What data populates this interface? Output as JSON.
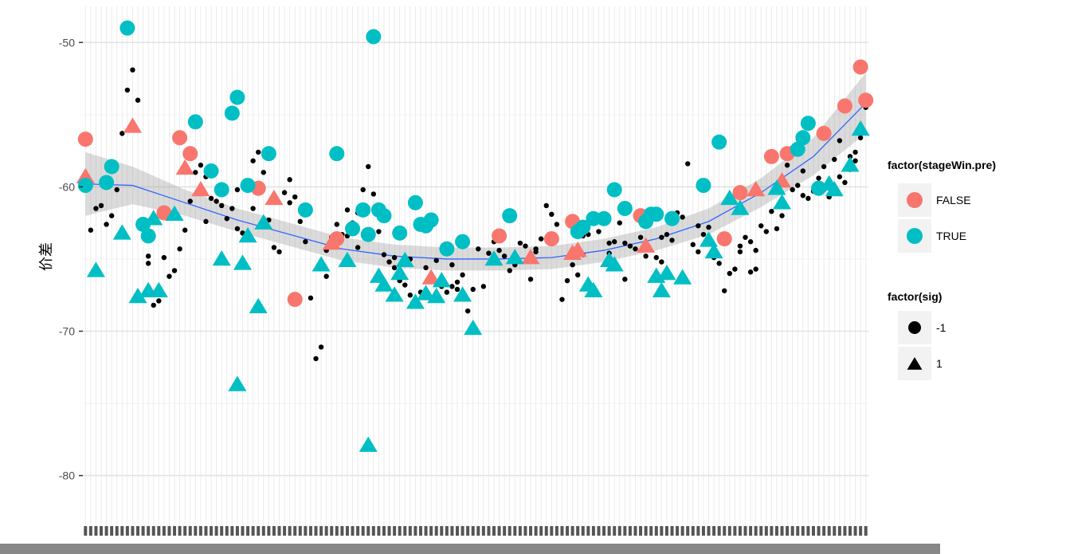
{
  "chart_data": {
    "type": "scatter",
    "ylabel": "价差",
    "xlabel": "",
    "ylim": [
      -83.5,
      -47.5
    ],
    "xlim": [
      0.5,
      150.5
    ],
    "x_categories": 150,
    "y_ticks": [
      -50,
      -60,
      -70,
      -80
    ],
    "y_tick_labels": [
      "-50",
      "-60",
      "-70",
      "-80"
    ],
    "grid": true,
    "legend_position": "right",
    "background_points": {
      "shape": "circle",
      "color": "#000000",
      "points": [
        [
          2,
          -63
        ],
        [
          3,
          -61.5
        ],
        [
          4,
          -61.3
        ],
        [
          5,
          -62.6
        ],
        [
          6,
          -62
        ],
        [
          7,
          -60.2
        ],
        [
          8,
          -56.3
        ],
        [
          9,
          -53.3
        ],
        [
          10,
          -51.9
        ],
        [
          11,
          -54
        ],
        [
          12,
          -62.3
        ],
        [
          13,
          -65.3
        ],
        [
          14,
          -68.2
        ],
        [
          15,
          -67.9
        ],
        [
          16,
          -64.9
        ],
        [
          17,
          -66.2
        ],
        [
          18,
          -65.8
        ],
        [
          19,
          -64.3
        ],
        [
          20,
          -63
        ],
        [
          21,
          -61
        ],
        [
          22,
          -59
        ],
        [
          23,
          -58.5
        ],
        [
          24,
          -59.3
        ],
        [
          25,
          -60.8
        ],
        [
          26,
          -61
        ],
        [
          27,
          -61.3
        ],
        [
          28,
          -62.2
        ],
        [
          29,
          -61.5
        ],
        [
          30,
          -62.9
        ],
        [
          31,
          -63.2
        ],
        [
          32,
          -63.3
        ],
        [
          33,
          -58.2
        ],
        [
          34,
          -57.6
        ],
        [
          35,
          -59
        ],
        [
          36,
          -62.3
        ],
        [
          37,
          -64.2
        ],
        [
          38,
          -64.5
        ],
        [
          39,
          -60.4
        ],
        [
          40,
          -59.5
        ],
        [
          41,
          -60.7
        ],
        [
          42,
          -62.4
        ],
        [
          43,
          -63.8
        ],
        [
          44,
          -67.7
        ],
        [
          45,
          -71.9
        ],
        [
          46,
          -71.1
        ],
        [
          47,
          -64.4
        ],
        [
          48,
          -63.5
        ],
        [
          49,
          -62.6
        ],
        [
          50,
          -63.3
        ],
        [
          51,
          -61.6
        ],
        [
          52,
          -62.5
        ],
        [
          53,
          -64.2
        ],
        [
          54,
          -60.2
        ],
        [
          55,
          -58.6
        ],
        [
          56,
          -60.5
        ],
        [
          57,
          -61.9
        ],
        [
          58,
          -64.7
        ],
        [
          59,
          -65.2
        ],
        [
          60,
          -65.6
        ],
        [
          61,
          -66.5
        ],
        [
          62,
          -66.8
        ],
        [
          63,
          -67.5
        ],
        [
          64,
          -68.2
        ],
        [
          65,
          -67.3
        ],
        [
          66,
          -65.6
        ],
        [
          67,
          -66.3
        ],
        [
          68,
          -65.1
        ],
        [
          69,
          -66.9
        ],
        [
          70,
          -67.3
        ],
        [
          71,
          -66.9
        ],
        [
          72,
          -66.6
        ],
        [
          73,
          -66.1
        ],
        [
          74,
          -68.6
        ],
        [
          75,
          -67.1
        ],
        [
          76,
          -64.3
        ],
        [
          77,
          -66.9
        ],
        [
          78,
          -64.6
        ],
        [
          79,
          -65.1
        ],
        [
          80,
          -64.4
        ],
        [
          81,
          -64.8
        ],
        [
          82,
          -65.8
        ],
        [
          83,
          -65.4
        ],
        [
          84,
          -63.9
        ],
        [
          85,
          -64.1
        ],
        [
          86,
          -66.4
        ],
        [
          87,
          -64.3
        ],
        [
          88,
          -63.6
        ],
        [
          89,
          -61.3
        ],
        [
          90,
          -61.9
        ],
        [
          91,
          -62.6
        ],
        [
          92,
          -67.8
        ],
        [
          93,
          -66.5
        ],
        [
          94,
          -65.4
        ],
        [
          95,
          -66.1
        ],
        [
          96,
          -63.4
        ],
        [
          97,
          -63.3
        ],
        [
          98,
          -62.1
        ],
        [
          99,
          -63.1
        ],
        [
          100,
          -62.3
        ],
        [
          101,
          -64.6
        ],
        [
          102,
          -63.8
        ],
        [
          103,
          -62.5
        ],
        [
          104,
          -66.4
        ],
        [
          105,
          -64.1
        ],
        [
          106,
          -64.3
        ],
        [
          107,
          -63.5
        ],
        [
          108,
          -64.8
        ],
        [
          109,
          -61.8
        ],
        [
          110,
          -64.9
        ],
        [
          111,
          -65.2
        ],
        [
          112,
          -63.3
        ],
        [
          113,
          -63.7
        ],
        [
          114,
          -61.8
        ],
        [
          115,
          -62.1
        ],
        [
          116,
          -58.4
        ],
        [
          117,
          -64
        ],
        [
          118,
          -64.5
        ],
        [
          119,
          -63.3
        ],
        [
          120,
          -62.8
        ],
        [
          121,
          -64.9
        ],
        [
          122,
          -65.3
        ],
        [
          123,
          -67.2
        ],
        [
          124,
          -66
        ],
        [
          125,
          -65.7
        ],
        [
          126,
          -64.5
        ],
        [
          127,
          -63.5
        ],
        [
          128,
          -65.9
        ],
        [
          129,
          -65.7
        ],
        [
          130,
          -62.7
        ],
        [
          131,
          -63.1
        ],
        [
          132,
          -61.7
        ],
        [
          133,
          -62.9
        ],
        [
          134,
          -62
        ],
        [
          135,
          -58.5
        ],
        [
          136,
          -57.3
        ],
        [
          137,
          -59.9
        ],
        [
          138,
          -58.9
        ],
        [
          139,
          -60.8
        ],
        [
          140,
          -60.3
        ],
        [
          141,
          -59.4
        ],
        [
          142,
          -60.2
        ],
        [
          143,
          -60.7
        ],
        [
          144,
          -58.1
        ],
        [
          145,
          -59.3
        ],
        [
          146,
          -59.7
        ],
        [
          147,
          -58.8
        ],
        [
          148,
          -57.6
        ],
        [
          149,
          -56.6
        ],
        [
          150,
          -54.5
        ],
        [
          24,
          -62.4
        ],
        [
          51,
          -63.4
        ],
        [
          63,
          -65
        ],
        [
          71,
          -65.4
        ],
        [
          79,
          -63.8
        ],
        [
          96,
          -64.7
        ],
        [
          104,
          -63.9
        ],
        [
          126,
          -64.1
        ],
        [
          138,
          -60.6
        ],
        [
          147,
          -57.9
        ],
        [
          13,
          -64.8
        ],
        [
          40,
          -61.1
        ],
        [
          60,
          -64.9
        ],
        [
          111,
          -63.5
        ],
        [
          128,
          -63.8
        ],
        [
          142,
          -58.6
        ],
        [
          30,
          -60.2
        ],
        [
          57,
          -63.1
        ],
        [
          87,
          -64.5
        ],
        [
          118,
          -62.7
        ],
        [
          47,
          -66.2
        ],
        [
          136,
          -60.2
        ],
        [
          148,
          -58.2
        ],
        [
          33,
          -61.5
        ],
        [
          101,
          -63.9
        ],
        [
          72,
          -67.1
        ],
        [
          53,
          -61.8
        ],
        [
          35,
          -62.5
        ],
        [
          129,
          -64.4
        ],
        [
          145,
          -56.8
        ]
      ]
    },
    "series": [
      {
        "group": "stageWin.pre",
        "name": "FALSE",
        "color": "#f8766d",
        "shape": "circle",
        "points": [
          [
            1,
            -56.7
          ],
          [
            16,
            -61.8
          ],
          [
            19,
            -56.6
          ],
          [
            21,
            -57.7
          ],
          [
            34,
            -60.1
          ],
          [
            41,
            -67.8
          ],
          [
            49,
            -63.6
          ],
          [
            80,
            -63.4
          ],
          [
            90,
            -63.6
          ],
          [
            94,
            -62.4
          ],
          [
            107,
            -62
          ],
          [
            123,
            -63.6
          ],
          [
            126,
            -60.4
          ],
          [
            132,
            -57.9
          ],
          [
            135,
            -57.7
          ],
          [
            142,
            -56.3
          ],
          [
            146,
            -54.4
          ],
          [
            149,
            -51.7
          ],
          [
            150,
            -54
          ]
        ]
      },
      {
        "group": "stageWin.pre",
        "name": "FALSE",
        "color": "#f8766d",
        "shape": "triangle",
        "points": [
          [
            1,
            -59.3
          ],
          [
            10,
            -55.8
          ],
          [
            20,
            -58.7
          ],
          [
            23,
            -60.2
          ],
          [
            37,
            -60.8
          ],
          [
            48,
            -63.9
          ],
          [
            67,
            -66.3
          ],
          [
            86,
            -64.9
          ],
          [
            94,
            -64.6
          ],
          [
            95,
            -64.4
          ],
          [
            108,
            -64.1
          ],
          [
            129,
            -60.2
          ],
          [
            134,
            -59.6
          ]
        ]
      },
      {
        "group": "stageWin.pre",
        "name": "TRUE",
        "color": "#00bfc4",
        "shape": "circle",
        "points": [
          [
            1,
            -59.9
          ],
          [
            5,
            -59.7
          ],
          [
            6,
            -58.6
          ],
          [
            9,
            -49
          ],
          [
            12,
            -62.6
          ],
          [
            13,
            -63.4
          ],
          [
            22,
            -55.5
          ],
          [
            25,
            -58.9
          ],
          [
            27,
            -60.2
          ],
          [
            29,
            -54.9
          ],
          [
            30,
            -53.8
          ],
          [
            32,
            -59.9
          ],
          [
            36,
            -57.7
          ],
          [
            43,
            -61.6
          ],
          [
            49,
            -57.7
          ],
          [
            52,
            -62.9
          ],
          [
            54,
            -61.6
          ],
          [
            55,
            -63.3
          ],
          [
            56,
            -49.6
          ],
          [
            57,
            -61.6
          ],
          [
            58,
            -62
          ],
          [
            61,
            -63.2
          ],
          [
            64,
            -61.1
          ],
          [
            65,
            -62.6
          ],
          [
            66,
            -62.7
          ],
          [
            67,
            -62.3
          ],
          [
            70,
            -64.3
          ],
          [
            73,
            -63.8
          ],
          [
            82,
            -62
          ],
          [
            95,
            -63.1
          ],
          [
            96,
            -62.8
          ],
          [
            98,
            -62.2
          ],
          [
            100,
            -62.2
          ],
          [
            102,
            -60.2
          ],
          [
            104,
            -61.5
          ],
          [
            108,
            -62.4
          ],
          [
            109,
            -61.9
          ],
          [
            110,
            -61.9
          ],
          [
            113,
            -62.2
          ],
          [
            119,
            -59.9
          ],
          [
            122,
            -56.9
          ],
          [
            137,
            -57.4
          ],
          [
            138,
            -56.6
          ],
          [
            139,
            -55.6
          ],
          [
            141,
            -60.1
          ]
        ]
      },
      {
        "group": "stageWin.pre",
        "name": "TRUE",
        "color": "#00bfc4",
        "shape": "triangle",
        "points": [
          [
            3,
            -65.8
          ],
          [
            8,
            -63.2
          ],
          [
            11,
            -67.6
          ],
          [
            13,
            -67.2
          ],
          [
            14,
            -62.2
          ],
          [
            15,
            -67.2
          ],
          [
            18,
            -61.9
          ],
          [
            27,
            -65
          ],
          [
            30,
            -73.7
          ],
          [
            31,
            -65.3
          ],
          [
            32,
            -63.4
          ],
          [
            34,
            -68.3
          ],
          [
            35,
            -62.5
          ],
          [
            46,
            -65.4
          ],
          [
            51,
            -65.1
          ],
          [
            55,
            -77.9
          ],
          [
            57,
            -66.2
          ],
          [
            58,
            -66.8
          ],
          [
            60,
            -67.5
          ],
          [
            61,
            -66
          ],
          [
            62,
            -65.1
          ],
          [
            64,
            -68
          ],
          [
            66,
            -67.4
          ],
          [
            68,
            -67.6
          ],
          [
            69,
            -66.5
          ],
          [
            73,
            -67.5
          ],
          [
            75,
            -69.8
          ],
          [
            79,
            -65
          ],
          [
            83,
            -64.9
          ],
          [
            97,
            -66.8
          ],
          [
            98,
            -67.2
          ],
          [
            101,
            -65.1
          ],
          [
            102,
            -65.4
          ],
          [
            110,
            -66.2
          ],
          [
            111,
            -67.2
          ],
          [
            112,
            -66
          ],
          [
            115,
            -66.3
          ],
          [
            120,
            -63.7
          ],
          [
            121,
            -64.5
          ],
          [
            124,
            -60.8
          ],
          [
            126,
            -61.5
          ],
          [
            133,
            -60.1
          ],
          [
            134,
            -61.1
          ],
          [
            143,
            -59.8
          ],
          [
            144,
            -60.2
          ],
          [
            147,
            -58.5
          ],
          [
            149,
            -56
          ]
        ]
      },
      {
        "group": "sig",
        "name": "-1",
        "shape": "circle",
        "color": "#000000",
        "points": []
      },
      {
        "group": "sig",
        "name": "1",
        "shape": "triangle",
        "color": "#000000",
        "points": []
      }
    ],
    "smooth": {
      "color": "#3366ff",
      "points": [
        [
          1,
          -59.8
        ],
        [
          10,
          -59.9
        ],
        [
          20,
          -61.1
        ],
        [
          30,
          -62.3
        ],
        [
          40,
          -63.3
        ],
        [
          50,
          -64.3
        ],
        [
          60,
          -64.8
        ],
        [
          70,
          -65
        ],
        [
          80,
          -65
        ],
        [
          90,
          -64.9
        ],
        [
          100,
          -64.4
        ],
        [
          110,
          -63.6
        ],
        [
          120,
          -62.4
        ],
        [
          130,
          -60.4
        ],
        [
          140,
          -57.9
        ],
        [
          150,
          -54.2
        ]
      ],
      "band": [
        2.2,
        1.3,
        0.9,
        0.8,
        0.8,
        0.8,
        0.8,
        0.8,
        0.8,
        0.8,
        0.8,
        0.8,
        0.9,
        1,
        1.3,
        2.1
      ]
    },
    "legend": [
      {
        "title": "factor(stageWin.pre)",
        "items": [
          {
            "label": "FALSE",
            "color": "#f8766d",
            "shape": "circle"
          },
          {
            "label": "TRUE",
            "color": "#00bfc4",
            "shape": "circle"
          }
        ]
      },
      {
        "title": "factor(sig)",
        "items": [
          {
            "label": "-1",
            "color": "#000000",
            "shape": "circle"
          },
          {
            "label": "1",
            "color": "#000000",
            "shape": "triangle"
          }
        ]
      }
    ]
  }
}
